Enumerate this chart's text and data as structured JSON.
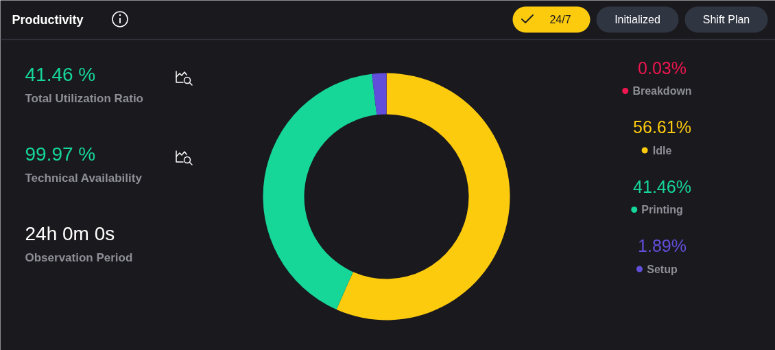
{
  "chart_data": [
    {
      "type": "other",
      "title": "Productivity",
      "annotations": [
        "24/7",
        "Initialized",
        "Shift Plan",
        "41.46 %",
        "Total Utilization Ratio",
        "99.97 %",
        "Technical Availability",
        "24h 0m 0s",
        "Observation Period"
      ]
    },
    {
      "type": "donut",
      "categories": [
        "Breakdown",
        "Idle",
        "Printing",
        "Setup"
      ],
      "values": [
        0.03,
        56.61,
        41.46,
        1.89
      ],
      "colors": [
        "#f0164f",
        "#fdcb0e",
        "#16d798",
        "#614fdb"
      ],
      "value_labels": [
        "0.03%",
        "56.61%",
        "41.46%",
        "1.89%"
      ],
      "legend": "right"
    }
  ]
}
